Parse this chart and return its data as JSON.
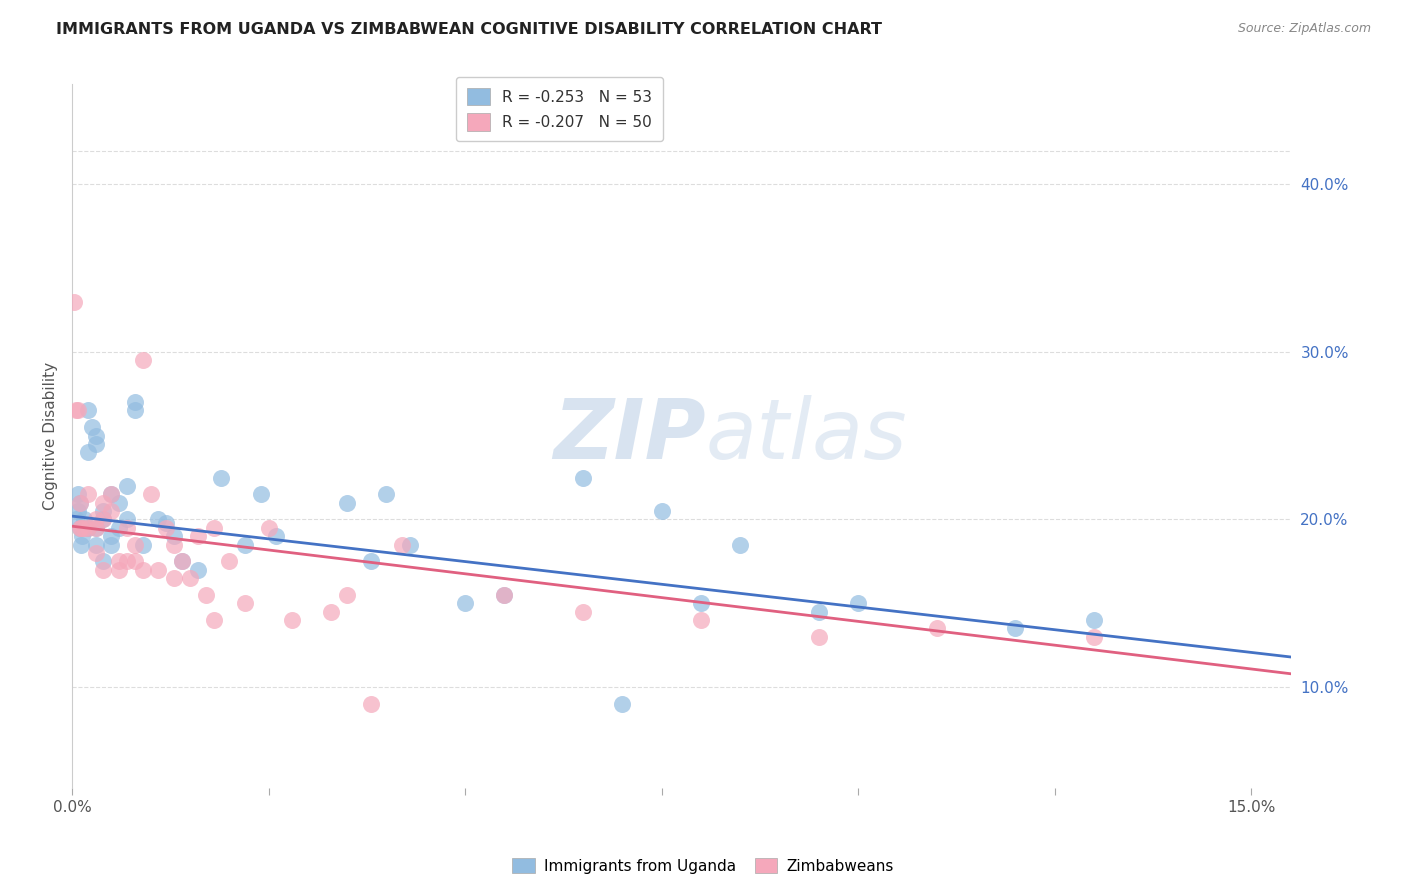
{
  "title": "IMMIGRANTS FROM UGANDA VS ZIMBABWEAN COGNITIVE DISABILITY CORRELATION CHART",
  "source": "Source: ZipAtlas.com",
  "ylabel": "Cognitive Disability",
  "right_yticks": [
    "10.0%",
    "20.0%",
    "30.0%",
    "40.0%"
  ],
  "right_ytick_vals": [
    0.1,
    0.2,
    0.3,
    0.4
  ],
  "legend1_label": "R = -0.253   N = 53",
  "legend2_label": "R = -0.207   N = 50",
  "legend1_color": "#92bce0",
  "legend2_color": "#f5a8bb",
  "line1_color": "#4472c4",
  "line2_color": "#e06080",
  "watermark_zip": "ZIP",
  "watermark_atlas": "atlas",
  "legend_x1_label": "Immigrants from Uganda",
  "legend_x2_label": "Zimbabweans",
  "blue_scatter_x": [
    0.0005,
    0.0007,
    0.0008,
    0.001,
    0.001,
    0.0012,
    0.0013,
    0.0015,
    0.002,
    0.002,
    0.002,
    0.0025,
    0.003,
    0.003,
    0.003,
    0.003,
    0.004,
    0.004,
    0.004,
    0.005,
    0.005,
    0.005,
    0.006,
    0.006,
    0.007,
    0.007,
    0.008,
    0.008,
    0.009,
    0.011,
    0.012,
    0.013,
    0.014,
    0.016,
    0.019,
    0.022,
    0.024,
    0.026,
    0.035,
    0.04,
    0.043,
    0.055,
    0.065,
    0.08,
    0.095,
    0.12,
    0.038,
    0.05,
    0.07,
    0.075,
    0.085,
    0.1,
    0.13
  ],
  "blue_scatter_y": [
    0.2,
    0.215,
    0.205,
    0.21,
    0.195,
    0.185,
    0.19,
    0.2,
    0.265,
    0.24,
    0.195,
    0.255,
    0.25,
    0.245,
    0.195,
    0.185,
    0.2,
    0.205,
    0.175,
    0.19,
    0.215,
    0.185,
    0.21,
    0.195,
    0.2,
    0.22,
    0.27,
    0.265,
    0.185,
    0.2,
    0.198,
    0.19,
    0.175,
    0.17,
    0.225,
    0.185,
    0.215,
    0.19,
    0.21,
    0.215,
    0.185,
    0.155,
    0.225,
    0.15,
    0.145,
    0.135,
    0.175,
    0.15,
    0.09,
    0.205,
    0.185,
    0.15,
    0.14
  ],
  "pink_scatter_x": [
    0.0003,
    0.0005,
    0.0007,
    0.001,
    0.001,
    0.0012,
    0.0015,
    0.002,
    0.002,
    0.003,
    0.003,
    0.003,
    0.004,
    0.004,
    0.004,
    0.005,
    0.005,
    0.006,
    0.006,
    0.007,
    0.007,
    0.008,
    0.009,
    0.01,
    0.011,
    0.012,
    0.013,
    0.014,
    0.015,
    0.016,
    0.017,
    0.018,
    0.02,
    0.022,
    0.025,
    0.028,
    0.033,
    0.038,
    0.042,
    0.055,
    0.065,
    0.08,
    0.095,
    0.11,
    0.13,
    0.008,
    0.009,
    0.013,
    0.018,
    0.035
  ],
  "pink_scatter_y": [
    0.33,
    0.265,
    0.265,
    0.195,
    0.21,
    0.195,
    0.195,
    0.195,
    0.215,
    0.2,
    0.195,
    0.18,
    0.21,
    0.2,
    0.17,
    0.215,
    0.205,
    0.175,
    0.17,
    0.195,
    0.175,
    0.185,
    0.17,
    0.215,
    0.17,
    0.195,
    0.185,
    0.175,
    0.165,
    0.19,
    0.155,
    0.195,
    0.175,
    0.15,
    0.195,
    0.14,
    0.145,
    0.09,
    0.185,
    0.155,
    0.145,
    0.14,
    0.13,
    0.135,
    0.13,
    0.175,
    0.295,
    0.165,
    0.14,
    0.155
  ],
  "xlim": [
    0.0,
    0.155
  ],
  "ylim": [
    0.04,
    0.46
  ],
  "line1_x": [
    0.0,
    0.155
  ],
  "line1_y": [
    0.202,
    0.118
  ],
  "line2_x": [
    0.0,
    0.155
  ],
  "line2_y": [
    0.196,
    0.108
  ],
  "x_minor_ticks": [
    0.0,
    0.025,
    0.05,
    0.075,
    0.1,
    0.125,
    0.15
  ],
  "title_fontsize": 11.5,
  "source_fontsize": 9,
  "ylabel_fontsize": 11,
  "right_ytick_fontsize": 11,
  "background_color": "#ffffff",
  "grid_color": "#dddddd",
  "spine_color": "#cccccc"
}
